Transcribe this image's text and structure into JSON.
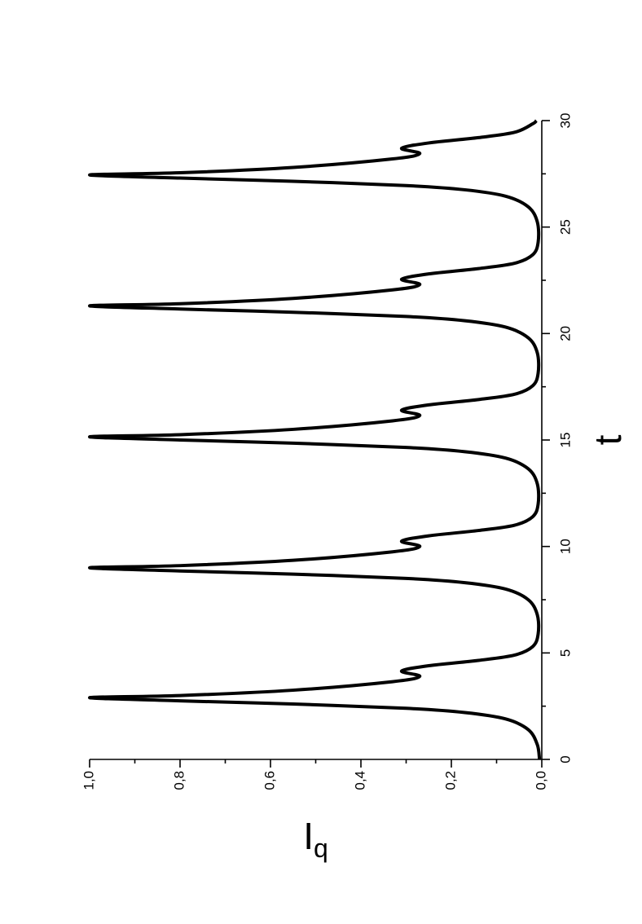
{
  "chart_data": {
    "type": "line",
    "xlabel": "t",
    "ylabel": "I",
    "ylabel_subscript": "q",
    "xlim": [
      0,
      30
    ],
    "ylim": [
      0,
      1
    ],
    "xticks": [
      0,
      5,
      10,
      15,
      20,
      25,
      30
    ],
    "xticks_minor": [
      2.5,
      7.5,
      12.5,
      17.5,
      22.5,
      27.5
    ],
    "yticks": [
      {
        "value": 0,
        "label": "0,0"
      },
      {
        "value": 0.2,
        "label": "0,2"
      },
      {
        "value": 0.4,
        "label": "0,4"
      },
      {
        "value": 0.6,
        "label": "0,6"
      },
      {
        "value": 0.8,
        "label": "0,8"
      },
      {
        "value": 1,
        "label": "1,0"
      }
    ],
    "yticks_minor": [
      0.1,
      0.3,
      0.5,
      0.7,
      0.9
    ],
    "rotation": -90,
    "series": [
      {
        "color": "#000000",
        "x": [
          0,
          0.7,
          1.4,
          1.9,
          2.2,
          2.4,
          2.6,
          2.75,
          2.9,
          3.0,
          3.25,
          3.65,
          3.9,
          4.15,
          4.4,
          4.65,
          4.9,
          5.3,
          5.9,
          6.8,
          7.5,
          8.0,
          8.3,
          8.5,
          8.7,
          8.85,
          9.0,
          9.1,
          9.35,
          9.75,
          10.0,
          10.25,
          10.5,
          10.75,
          11.0,
          11.4,
          12.0,
          12.95,
          13.65,
          14.15,
          14.45,
          14.65,
          14.85,
          15.0,
          15.15,
          15.25,
          15.5,
          15.9,
          16.15,
          16.4,
          16.65,
          16.9,
          17.15,
          17.55,
          18.15,
          19.1,
          19.8,
          20.3,
          20.6,
          20.8,
          21.0,
          21.15,
          21.3,
          21.4,
          21.65,
          22.05,
          22.3,
          22.55,
          22.8,
          23.05,
          23.3,
          23.7,
          24.3,
          25.25,
          25.95,
          26.45,
          26.75,
          26.95,
          27.15,
          27.3,
          27.45,
          27.55,
          27.8,
          28.2,
          28.45,
          28.7,
          28.95,
          29.2,
          29.45,
          29.85,
          30.0
        ],
        "values": [
          0.005,
          0.01,
          0.03,
          0.08,
          0.17,
          0.3,
          0.55,
          0.8,
          1.0,
          0.8,
          0.55,
          0.33,
          0.27,
          0.31,
          0.25,
          0.14,
          0.06,
          0.02,
          0.008,
          0.01,
          0.03,
          0.08,
          0.17,
          0.3,
          0.55,
          0.8,
          1.0,
          0.8,
          0.55,
          0.33,
          0.27,
          0.31,
          0.25,
          0.14,
          0.06,
          0.02,
          0.008,
          0.01,
          0.03,
          0.08,
          0.17,
          0.3,
          0.55,
          0.8,
          1.0,
          0.8,
          0.55,
          0.33,
          0.27,
          0.31,
          0.25,
          0.14,
          0.06,
          0.02,
          0.008,
          0.01,
          0.03,
          0.08,
          0.17,
          0.3,
          0.55,
          0.8,
          1.0,
          0.8,
          0.55,
          0.33,
          0.27,
          0.31,
          0.25,
          0.14,
          0.06,
          0.02,
          0.008,
          0.01,
          0.03,
          0.08,
          0.17,
          0.3,
          0.55,
          0.8,
          1.0,
          0.8,
          0.55,
          0.33,
          0.27,
          0.31,
          0.25,
          0.14,
          0.06,
          0.02,
          0.012
        ]
      }
    ]
  }
}
